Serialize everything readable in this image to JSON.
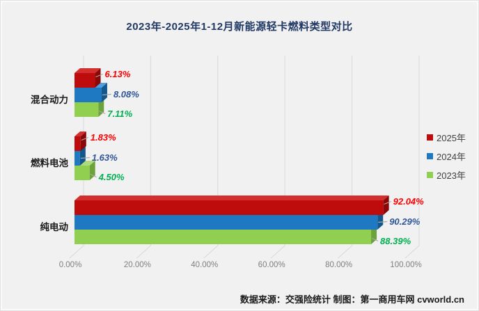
{
  "footer": "数据来源：交强险统计 制图：第一商用车网 cvworld.cn",
  "chart_data": {
    "type": "bar",
    "orientation": "horizontal-3d",
    "title": "2023年-2025年1-12月新能源轻卡燃料类型对比",
    "categories": [
      "混合动力",
      "燃料电池",
      "纯电动"
    ],
    "series": [
      {
        "name": "2025年",
        "values": [
          6.13,
          1.83,
          92.04
        ],
        "labels": [
          "6.13%",
          "1.83%",
          "92.04%"
        ],
        "color_front": "#BE0B0B",
        "color_top": "#D42F2F",
        "color_side": "#8A0808",
        "label_color": "#FE0000"
      },
      {
        "name": "2024年",
        "values": [
          8.08,
          1.63,
          90.29
        ],
        "labels": [
          "8.08%",
          "1.63%",
          "90.29%"
        ],
        "color_front": "#1E79C2",
        "color_top": "#4E9FDC",
        "color_side": "#12588D",
        "label_color": "#2F5597"
      },
      {
        "name": "2023年",
        "values": [
          7.11,
          4.5,
          88.39
        ],
        "labels": [
          "7.11%",
          "4.50%",
          "88.39%"
        ],
        "color_front": "#90CF50",
        "color_top": "#AEDC7D",
        "color_side": "#6CA23B",
        "label_color": "#00B050"
      }
    ],
    "x_ticks": [
      "0.00%",
      "20.00%",
      "40.00%",
      "60.00%",
      "80.00%",
      "100.00%"
    ],
    "xlim": [
      0,
      100
    ],
    "grid": "vertical",
    "legend_position": "right",
    "colors": {
      "background": "#F1F1F2",
      "gridline": "#D9D9D9",
      "title": "#1F3864",
      "axis_text": "#7F7F7F",
      "leader_line": "#A9A9A9"
    }
  }
}
